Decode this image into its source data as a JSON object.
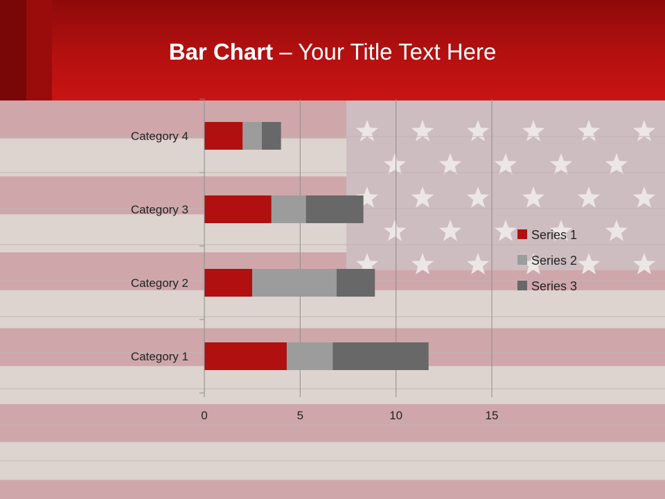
{
  "title": {
    "bold": "Bar Chart",
    "rest": " – Your Title Text Here"
  },
  "colors": {
    "header": "#b51010",
    "series1": "#b01010",
    "series2": "#9c9c9c",
    "series3": "#686868",
    "grid": "#8c8c8c"
  },
  "chart_data": {
    "type": "bar",
    "orientation": "horizontal",
    "stacked": true,
    "categories": [
      "Category 1",
      "Category 2",
      "Category 3",
      "Category 4"
    ],
    "series": [
      {
        "name": "Series 1",
        "values": [
          4.3,
          2.5,
          3.5,
          2.0
        ]
      },
      {
        "name": "Series 2",
        "values": [
          2.4,
          4.4,
          1.8,
          1.0
        ]
      },
      {
        "name": "Series 3",
        "values": [
          5.0,
          2.0,
          3.0,
          1.0
        ]
      }
    ],
    "xlim": [
      0,
      15
    ],
    "xticks": [
      "0",
      "5",
      "10",
      "15"
    ],
    "grid": true,
    "legend_position": "right"
  }
}
